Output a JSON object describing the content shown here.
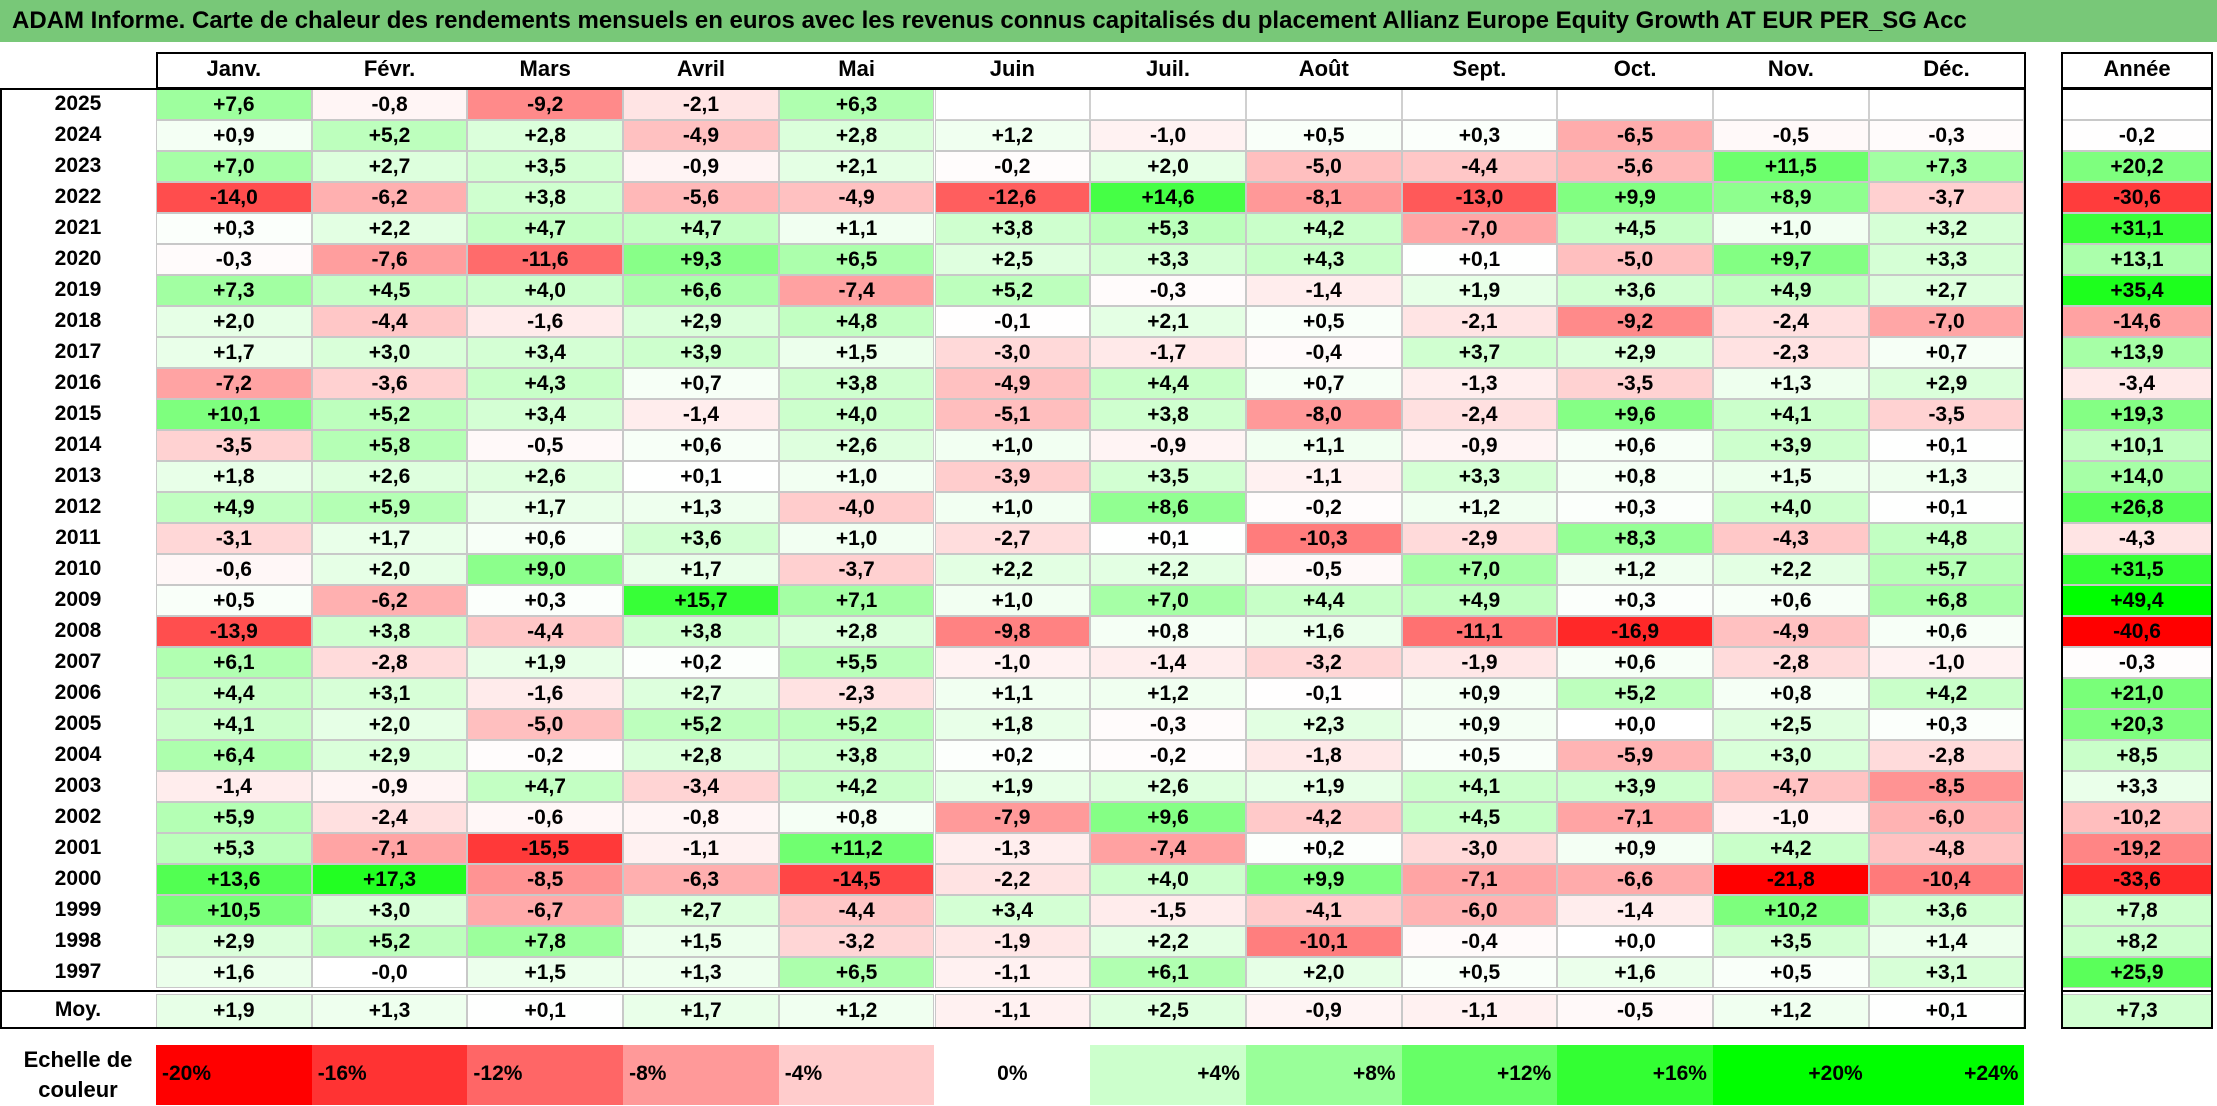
{
  "title": "ADAM Informe. Carte de chaleur des rendements mensuels en euros avec les revenus connus capitalisés du placement Allianz Europe Equity Growth AT EUR PER_SG Acc",
  "chart_data": {
    "type": "heatmap",
    "columns": [
      "Janv.",
      "Févr.",
      "Mars",
      "Avril",
      "Mai",
      "Juin",
      "Juil.",
      "Août",
      "Sept.",
      "Oct.",
      "Nov.",
      "Déc."
    ],
    "annual_header": "Année",
    "average_label": "Moy.",
    "rows": [
      {
        "year": "2025",
        "values": [
          "+7,6",
          "-0,8",
          "-9,2",
          "-2,1",
          "+6,3",
          "",
          "",
          "",
          "",
          "",
          "",
          ""
        ],
        "annual": ""
      },
      {
        "year": "2024",
        "values": [
          "+0,9",
          "+5,2",
          "+2,8",
          "-4,9",
          "+2,8",
          "+1,2",
          "-1,0",
          "+0,5",
          "+0,3",
          "-6,5",
          "-0,5",
          "-0,3"
        ],
        "annual": "-0,2"
      },
      {
        "year": "2023",
        "values": [
          "+7,0",
          "+2,7",
          "+3,5",
          "-0,9",
          "+2,1",
          "-0,2",
          "+2,0",
          "-5,0",
          "-4,4",
          "-5,6",
          "+11,5",
          "+7,3"
        ],
        "annual": "+20,2"
      },
      {
        "year": "2022",
        "values": [
          "-14,0",
          "-6,2",
          "+3,8",
          "-5,6",
          "-4,9",
          "-12,6",
          "+14,6",
          "-8,1",
          "-13,0",
          "+9,9",
          "+8,9",
          "-3,7"
        ],
        "annual": "-30,6"
      },
      {
        "year": "2021",
        "values": [
          "+0,3",
          "+2,2",
          "+4,7",
          "+4,7",
          "+1,1",
          "+3,8",
          "+5,3",
          "+4,2",
          "-7,0",
          "+4,5",
          "+1,0",
          "+3,2"
        ],
        "annual": "+31,1"
      },
      {
        "year": "2020",
        "values": [
          "-0,3",
          "-7,6",
          "-11,6",
          "+9,3",
          "+6,5",
          "+2,5",
          "+3,3",
          "+4,3",
          "+0,1",
          "-5,0",
          "+9,7",
          "+3,3"
        ],
        "annual": "+13,1"
      },
      {
        "year": "2019",
        "values": [
          "+7,3",
          "+4,5",
          "+4,0",
          "+6,6",
          "-7,4",
          "+5,2",
          "-0,3",
          "-1,4",
          "+1,9",
          "+3,6",
          "+4,9",
          "+2,7"
        ],
        "annual": "+35,4"
      },
      {
        "year": "2018",
        "values": [
          "+2,0",
          "-4,4",
          "-1,6",
          "+2,9",
          "+4,8",
          "-0,1",
          "+2,1",
          "+0,5",
          "-2,1",
          "-9,2",
          "-2,4",
          "-7,0"
        ],
        "annual": "-14,6"
      },
      {
        "year": "2017",
        "values": [
          "+1,7",
          "+3,0",
          "+3,4",
          "+3,9",
          "+1,5",
          "-3,0",
          "-1,7",
          "-0,4",
          "+3,7",
          "+2,9",
          "-2,3",
          "+0,7"
        ],
        "annual": "+13,9"
      },
      {
        "year": "2016",
        "values": [
          "-7,2",
          "-3,6",
          "+4,3",
          "+0,7",
          "+3,8",
          "-4,9",
          "+4,4",
          "+0,7",
          "-1,3",
          "-3,5",
          "+1,3",
          "+2,9"
        ],
        "annual": "-3,4"
      },
      {
        "year": "2015",
        "values": [
          "+10,1",
          "+5,2",
          "+3,4",
          "-1,4",
          "+4,0",
          "-5,1",
          "+3,8",
          "-8,0",
          "-2,4",
          "+9,6",
          "+4,1",
          "-3,5"
        ],
        "annual": "+19,3"
      },
      {
        "year": "2014",
        "values": [
          "-3,5",
          "+5,8",
          "-0,5",
          "+0,6",
          "+2,6",
          "+1,0",
          "-0,9",
          "+1,1",
          "-0,9",
          "+0,6",
          "+3,9",
          "+0,1"
        ],
        "annual": "+10,1"
      },
      {
        "year": "2013",
        "values": [
          "+1,8",
          "+2,6",
          "+2,6",
          "+0,1",
          "+1,0",
          "-3,9",
          "+3,5",
          "-1,1",
          "+3,3",
          "+0,8",
          "+1,5",
          "+1,3"
        ],
        "annual": "+14,0"
      },
      {
        "year": "2012",
        "values": [
          "+4,9",
          "+5,9",
          "+1,7",
          "+1,3",
          "-4,0",
          "+1,0",
          "+8,6",
          "-0,2",
          "+1,2",
          "+0,3",
          "+4,0",
          "+0,1"
        ],
        "annual": "+26,8"
      },
      {
        "year": "2011",
        "values": [
          "-3,1",
          "+1,7",
          "+0,6",
          "+3,6",
          "+1,0",
          "-2,7",
          "+0,1",
          "-10,3",
          "-2,9",
          "+8,3",
          "-4,3",
          "+4,8"
        ],
        "annual": "-4,3"
      },
      {
        "year": "2010",
        "values": [
          "-0,6",
          "+2,0",
          "+9,0",
          "+1,7",
          "-3,7",
          "+2,2",
          "+2,2",
          "-0,5",
          "+7,0",
          "+1,2",
          "+2,2",
          "+5,7"
        ],
        "annual": "+31,5"
      },
      {
        "year": "2009",
        "values": [
          "+0,5",
          "-6,2",
          "+0,3",
          "+15,7",
          "+7,1",
          "+1,0",
          "+7,0",
          "+4,4",
          "+4,9",
          "+0,3",
          "+0,6",
          "+6,8"
        ],
        "annual": "+49,4"
      },
      {
        "year": "2008",
        "values": [
          "-13,9",
          "+3,8",
          "-4,4",
          "+3,8",
          "+2,8",
          "-9,8",
          "+0,8",
          "+1,6",
          "-11,1",
          "-16,9",
          "-4,9",
          "+0,6"
        ],
        "annual": "-40,6"
      },
      {
        "year": "2007",
        "values": [
          "+6,1",
          "-2,8",
          "+1,9",
          "+0,2",
          "+5,5",
          "-1,0",
          "-1,4",
          "-3,2",
          "-1,9",
          "+0,6",
          "-2,8",
          "-1,0"
        ],
        "annual": "-0,3"
      },
      {
        "year": "2006",
        "values": [
          "+4,4",
          "+3,1",
          "-1,6",
          "+2,7",
          "-2,3",
          "+1,1",
          "+1,2",
          "-0,1",
          "+0,9",
          "+5,2",
          "+0,8",
          "+4,2"
        ],
        "annual": "+21,0"
      },
      {
        "year": "2005",
        "values": [
          "+4,1",
          "+2,0",
          "-5,0",
          "+5,2",
          "+5,2",
          "+1,8",
          "-0,3",
          "+2,3",
          "+0,9",
          "+0,0",
          "+2,5",
          "+0,3"
        ],
        "annual": "+20,3"
      },
      {
        "year": "2004",
        "values": [
          "+6,4",
          "+2,9",
          "-0,2",
          "+2,8",
          "+3,8",
          "+0,2",
          "-0,2",
          "-1,8",
          "+0,5",
          "-5,9",
          "+3,0",
          "-2,8"
        ],
        "annual": "+8,5"
      },
      {
        "year": "2003",
        "values": [
          "-1,4",
          "-0,9",
          "+4,7",
          "-3,4",
          "+4,2",
          "+1,9",
          "+2,6",
          "+1,9",
          "+4,1",
          "+3,9",
          "-4,7",
          "-8,5"
        ],
        "annual": "+3,3"
      },
      {
        "year": "2002",
        "values": [
          "+5,9",
          "-2,4",
          "-0,6",
          "-0,8",
          "+0,8",
          "-7,9",
          "+9,6",
          "-4,2",
          "+4,5",
          "-7,1",
          "-1,0",
          "-6,0"
        ],
        "annual": "-10,2"
      },
      {
        "year": "2001",
        "values": [
          "+5,3",
          "-7,1",
          "-15,5",
          "-1,1",
          "+11,2",
          "-1,3",
          "-7,4",
          "+0,2",
          "-3,0",
          "+0,9",
          "+4,2",
          "-4,8"
        ],
        "annual": "-19,2"
      },
      {
        "year": "2000",
        "values": [
          "+13,6",
          "+17,3",
          "-8,5",
          "-6,3",
          "-14,5",
          "-2,2",
          "+4,0",
          "+9,9",
          "-7,1",
          "-6,6",
          "-21,8",
          "-10,4"
        ],
        "annual": "-33,6"
      },
      {
        "year": "1999",
        "values": [
          "+10,5",
          "+3,0",
          "-6,7",
          "+2,7",
          "-4,4",
          "+3,4",
          "-1,5",
          "-4,1",
          "-6,0",
          "-1,4",
          "+10,2",
          "+3,6"
        ],
        "annual": "+7,8"
      },
      {
        "year": "1998",
        "values": [
          "+2,9",
          "+5,2",
          "+7,8",
          "+1,5",
          "-3,2",
          "-1,9",
          "+2,2",
          "-10,1",
          "-0,4",
          "+0,0",
          "+3,5",
          "+1,4"
        ],
        "annual": "+8,2"
      },
      {
        "year": "1997",
        "values": [
          "+1,6",
          "-0,0",
          "+1,5",
          "+1,3",
          "+6,5",
          "-1,1",
          "+6,1",
          "+2,0",
          "+0,5",
          "+1,6",
          "+0,5",
          "+3,1"
        ],
        "annual": "+25,9"
      }
    ],
    "averages": [
      "+1,9",
      "+1,3",
      "+0,1",
      "+1,7",
      "+1,2",
      "-1,1",
      "+2,5",
      "-0,9",
      "-1,1",
      "-0,5",
      "+1,2",
      "+0,1"
    ],
    "average_annual": "+7,3",
    "color_scale": {
      "label": "Echelle de couleur",
      "stops": [
        "-20%",
        "-16%",
        "-12%",
        "-8%",
        "-4%",
        "0%",
        "+4%",
        "+8%",
        "+12%",
        "+16%",
        "+20%",
        "+24%"
      ],
      "negative_color": "#ff0000",
      "neutral_color": "#ffffff",
      "positive_color": "#00ff00"
    }
  }
}
